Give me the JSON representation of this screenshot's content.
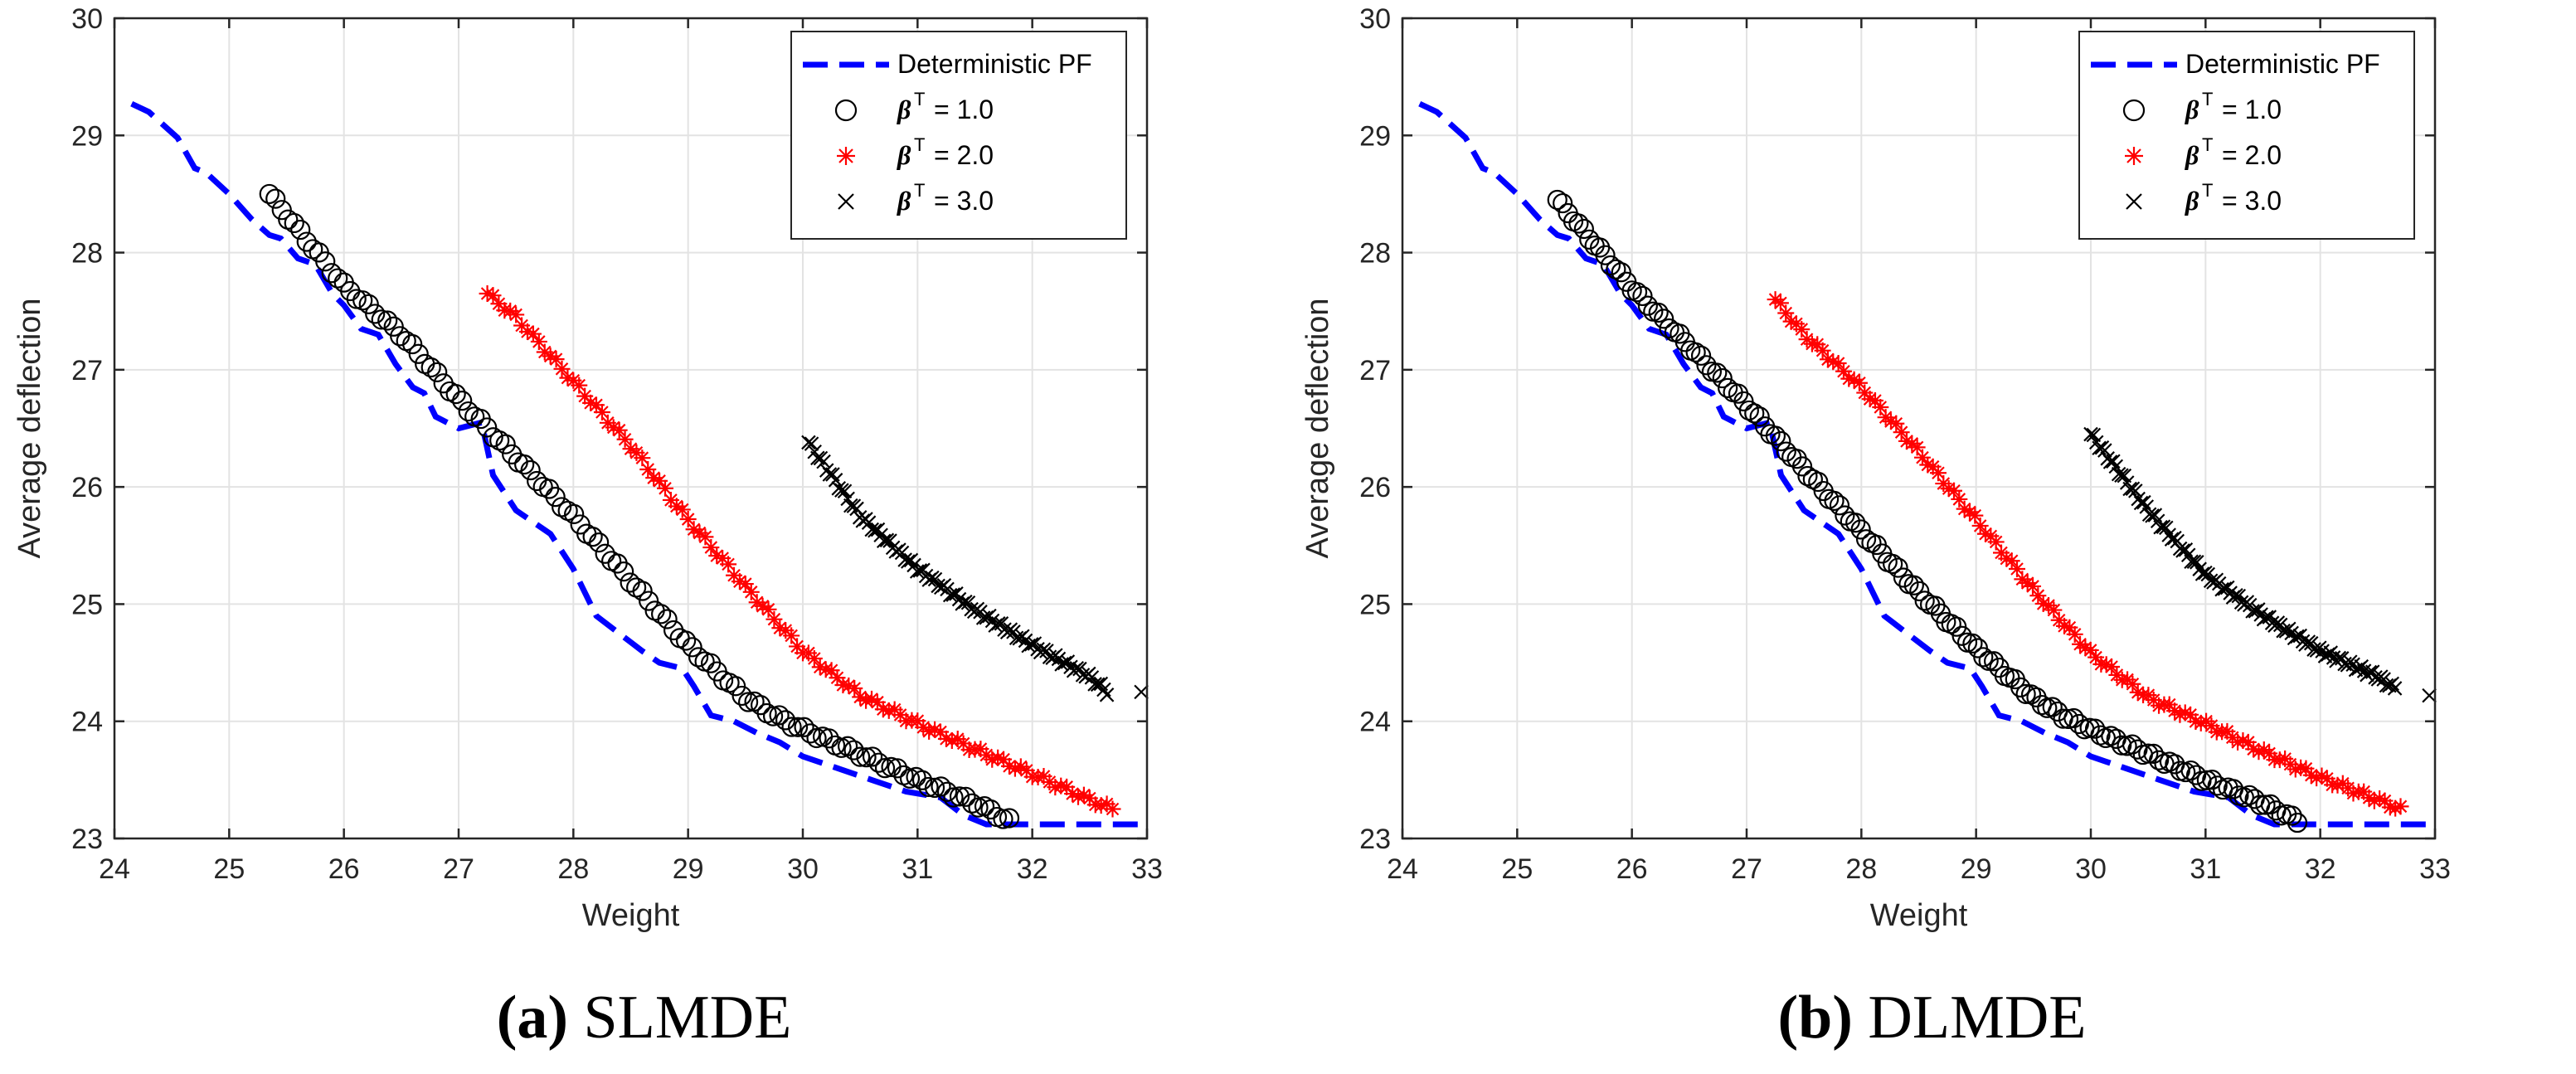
{
  "chart_data": [
    {
      "type": "line",
      "panel_label": "a",
      "title": "SLMDE",
      "xlabel": "Weight",
      "ylabel": "Average deflection",
      "xlim": [
        24,
        33
      ],
      "ylim": [
        23,
        30
      ],
      "xticks": [
        "24",
        "25",
        "26",
        "27",
        "28",
        "29",
        "30",
        "31",
        "32",
        "33"
      ],
      "yticks": [
        "23",
        "24",
        "25",
        "26",
        "27",
        "28",
        "29",
        "30"
      ],
      "grid": true,
      "legend_position": "top-right",
      "legend": [
        "Deterministic PF",
        "β^T = 1.0",
        "β^T = 2.0",
        "β^T = 3.0"
      ],
      "series": [
        {
          "name": "Deterministic PF",
          "style": "dashed-line",
          "color": "#0000ff",
          "x": [
            24.15,
            24.3,
            24.55,
            24.7,
            24.8,
            25.0,
            25.2,
            25.35,
            25.45,
            25.6,
            25.75,
            25.9,
            26.0,
            26.15,
            26.3,
            26.45,
            26.6,
            26.7,
            26.8,
            27.0,
            27.2,
            27.3,
            27.5,
            27.8,
            28.0,
            28.2,
            28.4,
            28.6,
            28.75,
            28.95,
            29.05,
            29.2,
            29.4,
            29.6,
            29.8,
            30.0,
            30.3,
            30.6,
            30.9,
            31.2,
            31.4,
            31.6,
            31.8,
            32.2,
            32.6,
            32.95
          ],
          "y": [
            29.27,
            29.2,
            28.98,
            28.72,
            28.68,
            28.5,
            28.28,
            28.15,
            28.12,
            27.95,
            27.9,
            27.65,
            27.55,
            27.35,
            27.3,
            27.05,
            26.85,
            26.8,
            26.6,
            26.5,
            26.55,
            26.1,
            25.8,
            25.6,
            25.3,
            24.9,
            24.75,
            24.6,
            24.5,
            24.45,
            24.3,
            24.05,
            24.0,
            23.9,
            23.82,
            23.7,
            23.6,
            23.5,
            23.4,
            23.35,
            23.2,
            23.12,
            23.12,
            23.12,
            23.12,
            23.12
          ]
        },
        {
          "name": "β^T = 1.0",
          "style": "open-circle",
          "color": "#000000",
          "x_start": 25.35,
          "x_end": 31.8,
          "count": 120,
          "x": [
            25.35,
            26.0,
            26.5,
            27.0,
            27.5,
            28.0,
            28.5,
            29.0,
            29.5,
            29.75,
            30.0,
            30.5,
            31.0,
            31.5,
            31.8
          ],
          "y": [
            28.5,
            27.72,
            27.3,
            26.75,
            26.25,
            25.75,
            25.2,
            24.65,
            24.2,
            24.05,
            23.93,
            23.72,
            23.5,
            23.3,
            23.15
          ]
        },
        {
          "name": "β^T = 2.0",
          "style": "asterisk",
          "color": "#ff0000",
          "x_start": 27.25,
          "x_end": 32.7,
          "count": 110,
          "x": [
            27.25,
            27.5,
            28.0,
            28.5,
            29.0,
            29.5,
            30.0,
            30.5,
            31.0,
            31.5,
            32.0,
            32.5,
            32.7
          ],
          "y": [
            27.65,
            27.45,
            26.9,
            26.35,
            25.72,
            25.15,
            24.6,
            24.22,
            23.98,
            23.76,
            23.55,
            23.33,
            23.25
          ]
        },
        {
          "name": "β^T = 3.0",
          "style": "cross",
          "color": "#000000",
          "x_start": 30.05,
          "x_end": 32.65,
          "count": 100,
          "x": [
            30.05,
            30.5,
            31.0,
            31.5,
            32.0,
            32.5,
            32.65
          ],
          "y": [
            26.38,
            25.75,
            25.3,
            24.95,
            24.65,
            24.38,
            24.25
          ],
          "outlier": {
            "x": 32.95,
            "y": 24.25
          }
        }
      ]
    },
    {
      "type": "line",
      "panel_label": "b",
      "title": "DLMDE",
      "xlabel": "Weight",
      "ylabel": "Average deflection",
      "xlim": [
        24,
        33
      ],
      "ylim": [
        23,
        30
      ],
      "xticks": [
        "24",
        "25",
        "26",
        "27",
        "28",
        "29",
        "30",
        "31",
        "32",
        "33"
      ],
      "yticks": [
        "23",
        "24",
        "25",
        "26",
        "27",
        "28",
        "29",
        "30"
      ],
      "grid": true,
      "legend_position": "top-right",
      "legend": [
        "Deterministic PF",
        "β^T = 1.0",
        "β^T = 2.0",
        "β^T = 3.0"
      ],
      "series": [
        {
          "name": "Deterministic PF",
          "style": "dashed-line",
          "color": "#0000ff",
          "x": [
            24.15,
            24.3,
            24.55,
            24.7,
            24.8,
            25.0,
            25.2,
            25.35,
            25.45,
            25.6,
            25.75,
            25.9,
            26.0,
            26.15,
            26.3,
            26.45,
            26.6,
            26.7,
            26.8,
            27.0,
            27.2,
            27.3,
            27.5,
            27.8,
            28.0,
            28.2,
            28.4,
            28.6,
            28.75,
            28.95,
            29.05,
            29.2,
            29.4,
            29.6,
            29.8,
            30.0,
            30.3,
            30.6,
            30.9,
            31.2,
            31.4,
            31.6,
            31.8,
            32.2,
            32.6,
            32.95
          ],
          "y": [
            29.27,
            29.2,
            28.98,
            28.72,
            28.68,
            28.5,
            28.28,
            28.15,
            28.12,
            27.95,
            27.9,
            27.65,
            27.55,
            27.35,
            27.3,
            27.05,
            26.85,
            26.8,
            26.6,
            26.5,
            26.55,
            26.1,
            25.8,
            25.6,
            25.3,
            24.9,
            24.75,
            24.6,
            24.5,
            24.45,
            24.3,
            24.05,
            24.0,
            23.9,
            23.82,
            23.7,
            23.6,
            23.5,
            23.4,
            23.35,
            23.2,
            23.12,
            23.12,
            23.12,
            23.12,
            23.12
          ]
        },
        {
          "name": "β^T = 1.0",
          "style": "open-circle",
          "color": "#000000",
          "x_start": 25.35,
          "x_end": 31.8,
          "count": 140,
          "x": [
            25.35,
            26.0,
            26.5,
            27.0,
            27.5,
            28.0,
            28.5,
            29.0,
            29.5,
            29.75,
            30.0,
            30.5,
            31.0,
            31.5,
            31.8
          ],
          "y": [
            28.45,
            27.7,
            27.2,
            26.7,
            26.15,
            25.62,
            25.1,
            24.62,
            24.2,
            24.05,
            23.93,
            23.72,
            23.5,
            23.3,
            23.15
          ]
        },
        {
          "name": "β^T = 2.0",
          "style": "asterisk",
          "color": "#ff0000",
          "x_start": 27.25,
          "x_end": 32.7,
          "count": 120,
          "x": [
            27.25,
            27.5,
            28.0,
            28.5,
            29.0,
            29.5,
            30.0,
            30.5,
            31.0,
            31.5,
            32.0,
            32.5,
            32.7
          ],
          "y": [
            27.6,
            27.3,
            26.85,
            26.3,
            25.72,
            25.12,
            24.58,
            24.2,
            23.98,
            23.74,
            23.52,
            23.33,
            23.25
          ]
        },
        {
          "name": "β^T = 3.0",
          "style": "cross",
          "color": "#000000",
          "x_start": 30.0,
          "x_end": 32.65,
          "count": 110,
          "x": [
            30.0,
            30.5,
            31.0,
            31.5,
            32.0,
            32.5,
            32.65
          ],
          "y": [
            26.45,
            25.8,
            25.25,
            24.9,
            24.6,
            24.38,
            24.28
          ],
          "outlier": {
            "x": 32.95,
            "y": 24.22
          }
        }
      ]
    }
  ],
  "legend_labels": {
    "deterministic": "Deterministic PF",
    "beta_symbol": "β",
    "beta_superscript": "T",
    "b1": "= 1.0",
    "b2": "= 2.0",
    "b3": "= 3.0"
  },
  "captions": [
    {
      "label": "(a)",
      "text": "SLMDE"
    },
    {
      "label": "(b)",
      "text": "DLMDE"
    }
  ]
}
